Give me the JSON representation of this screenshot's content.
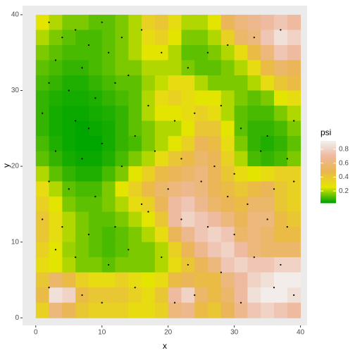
{
  "chart_data": {
    "type": "heatmap",
    "x_label": "x",
    "y_label": "y",
    "x": [
      1,
      3,
      5,
      7,
      9,
      11,
      13,
      15,
      17,
      19,
      21,
      23,
      25,
      27,
      29,
      31,
      33,
      35,
      37,
      39
    ],
    "y": [
      39,
      37,
      35,
      33,
      31,
      29,
      27,
      25,
      23,
      21,
      19,
      17,
      15,
      13,
      11,
      9,
      7,
      5,
      3,
      1
    ],
    "z": [
      [
        0.25,
        0.2,
        0.15,
        0.15,
        0.12,
        0.12,
        0.15,
        0.2,
        0.35,
        0.4,
        0.3,
        0.2,
        0.2,
        0.25,
        0.5,
        0.6,
        0.65,
        0.7,
        0.75,
        0.7
      ],
      [
        0.2,
        0.15,
        0.12,
        0.1,
        0.1,
        0.12,
        0.15,
        0.2,
        0.3,
        0.35,
        0.25,
        0.15,
        0.15,
        0.2,
        0.35,
        0.55,
        0.6,
        0.75,
        0.85,
        0.8
      ],
      [
        0.15,
        0.12,
        0.1,
        0.1,
        0.1,
        0.12,
        0.15,
        0.2,
        0.25,
        0.25,
        0.2,
        0.12,
        0.12,
        0.15,
        0.2,
        0.3,
        0.45,
        0.6,
        0.75,
        0.7
      ],
      [
        0.12,
        0.1,
        0.08,
        0.08,
        0.1,
        0.12,
        0.15,
        0.15,
        0.2,
        0.2,
        0.2,
        0.15,
        0.12,
        0.12,
        0.15,
        0.2,
        0.3,
        0.45,
        0.55,
        0.5
      ],
      [
        0.1,
        0.08,
        0.06,
        0.06,
        0.08,
        0.1,
        0.12,
        0.12,
        0.18,
        0.22,
        0.3,
        0.3,
        0.2,
        0.15,
        0.15,
        0.15,
        0.2,
        0.3,
        0.4,
        0.45
      ],
      [
        0.08,
        0.06,
        0.05,
        0.05,
        0.06,
        0.08,
        0.1,
        0.12,
        0.2,
        0.3,
        0.35,
        0.3,
        0.25,
        0.25,
        0.2,
        0.15,
        0.12,
        0.15,
        0.25,
        0.3
      ],
      [
        0.08,
        0.05,
        0.04,
        0.04,
        0.05,
        0.06,
        0.08,
        0.12,
        0.2,
        0.25,
        0.25,
        0.3,
        0.35,
        0.3,
        0.2,
        0.12,
        0.1,
        0.1,
        0.15,
        0.2
      ],
      [
        0.08,
        0.05,
        0.04,
        0.03,
        0.04,
        0.05,
        0.08,
        0.12,
        0.15,
        0.2,
        0.2,
        0.25,
        0.4,
        0.4,
        0.25,
        0.12,
        0.08,
        0.08,
        0.1,
        0.15
      ],
      [
        0.1,
        0.06,
        0.04,
        0.03,
        0.03,
        0.05,
        0.08,
        0.1,
        0.15,
        0.2,
        0.25,
        0.35,
        0.5,
        0.45,
        0.3,
        0.15,
        0.08,
        0.06,
        0.08,
        0.12
      ],
      [
        0.12,
        0.08,
        0.05,
        0.04,
        0.04,
        0.06,
        0.1,
        0.15,
        0.2,
        0.3,
        0.4,
        0.45,
        0.55,
        0.5,
        0.35,
        0.2,
        0.1,
        0.08,
        0.1,
        0.15
      ],
      [
        0.2,
        0.12,
        0.08,
        0.06,
        0.06,
        0.1,
        0.15,
        0.25,
        0.35,
        0.45,
        0.5,
        0.55,
        0.6,
        0.5,
        0.4,
        0.3,
        0.25,
        0.3,
        0.35,
        0.35
      ],
      [
        0.3,
        0.2,
        0.12,
        0.1,
        0.1,
        0.15,
        0.25,
        0.35,
        0.45,
        0.55,
        0.6,
        0.65,
        0.6,
        0.5,
        0.45,
        0.4,
        0.45,
        0.5,
        0.4,
        0.35
      ],
      [
        0.35,
        0.25,
        0.15,
        0.12,
        0.12,
        0.15,
        0.2,
        0.3,
        0.35,
        0.5,
        0.7,
        0.75,
        0.65,
        0.55,
        0.5,
        0.45,
        0.55,
        0.55,
        0.4,
        0.35
      ],
      [
        0.4,
        0.3,
        0.2,
        0.15,
        0.12,
        0.12,
        0.15,
        0.2,
        0.25,
        0.4,
        0.7,
        0.8,
        0.75,
        0.7,
        0.6,
        0.5,
        0.6,
        0.6,
        0.45,
        0.4
      ],
      [
        0.4,
        0.3,
        0.2,
        0.15,
        0.12,
        0.1,
        0.12,
        0.15,
        0.2,
        0.3,
        0.5,
        0.65,
        0.75,
        0.8,
        0.75,
        0.55,
        0.6,
        0.55,
        0.45,
        0.45
      ],
      [
        0.35,
        0.25,
        0.18,
        0.15,
        0.12,
        0.1,
        0.12,
        0.15,
        0.15,
        0.2,
        0.35,
        0.5,
        0.65,
        0.75,
        0.8,
        0.7,
        0.6,
        0.55,
        0.55,
        0.55
      ],
      [
        0.3,
        0.25,
        0.2,
        0.15,
        0.15,
        0.12,
        0.15,
        0.15,
        0.15,
        0.2,
        0.3,
        0.4,
        0.5,
        0.6,
        0.75,
        0.8,
        0.75,
        0.75,
        0.8,
        0.8
      ],
      [
        0.4,
        0.55,
        0.45,
        0.35,
        0.3,
        0.3,
        0.35,
        0.3,
        0.25,
        0.3,
        0.45,
        0.5,
        0.45,
        0.45,
        0.6,
        0.7,
        0.8,
        0.85,
        0.9,
        0.9
      ],
      [
        0.45,
        0.85,
        0.8,
        0.45,
        0.4,
        0.4,
        0.4,
        0.35,
        0.3,
        0.4,
        0.7,
        0.8,
        0.55,
        0.45,
        0.55,
        0.7,
        0.85,
        0.9,
        0.9,
        0.85
      ],
      [
        0.35,
        0.6,
        0.5,
        0.4,
        0.35,
        0.35,
        0.35,
        0.3,
        0.3,
        0.35,
        0.6,
        0.65,
        0.45,
        0.4,
        0.5,
        0.65,
        0.75,
        0.8,
        0.75,
        0.7
      ]
    ],
    "points": {
      "x": [
        2,
        4,
        6,
        8,
        10,
        13,
        16,
        3,
        7,
        11,
        14,
        19,
        2,
        5,
        9,
        12,
        17,
        23,
        26,
        29,
        33,
        37,
        1,
        6,
        8,
        15,
        21,
        24,
        28,
        31,
        35,
        39,
        3,
        7,
        10,
        13,
        18,
        22,
        27,
        30,
        34,
        38,
        2,
        5,
        9,
        16,
        20,
        25,
        29,
        32,
        36,
        39,
        1,
        4,
        8,
        12,
        17,
        22,
        26,
        30,
        35,
        38,
        3,
        6,
        11,
        14,
        19,
        23,
        28,
        33,
        37,
        2,
        7,
        10,
        15,
        21,
        24,
        31,
        36,
        39
      ],
      "y": [
        39,
        37,
        38,
        36,
        39,
        37,
        38,
        34,
        33,
        35,
        32,
        35,
        31,
        30,
        29,
        31,
        28,
        33,
        35,
        36,
        37,
        38,
        27,
        26,
        25,
        24,
        26,
        27,
        28,
        25,
        24,
        26,
        22,
        21,
        23,
        20,
        22,
        21,
        20,
        19,
        22,
        21,
        18,
        17,
        16,
        15,
        17,
        18,
        16,
        15,
        17,
        18,
        13,
        12,
        11,
        12,
        14,
        13,
        12,
        11,
        13,
        12,
        9,
        8,
        7,
        9,
        8,
        7,
        6,
        8,
        7,
        4,
        3,
        2,
        4,
        2,
        3,
        2,
        4,
        3
      ]
    },
    "xlim": [
      -2,
      41
    ],
    "ylim": [
      -1,
      41.2
    ],
    "xticks": [
      0,
      10,
      20,
      30,
      40
    ],
    "yticks": [
      0,
      10,
      20,
      30,
      40
    ],
    "grid": true,
    "legend": {
      "title": "psi",
      "ticks": [
        0.2,
        0.4,
        0.6,
        0.8
      ],
      "range": [
        0.03,
        0.92
      ]
    },
    "colorscale": [
      "#00A600",
      "#E6E600",
      "#EAB64E",
      "#EEB99F",
      "#F2F2F2"
    ],
    "point_color": "#000000"
  }
}
